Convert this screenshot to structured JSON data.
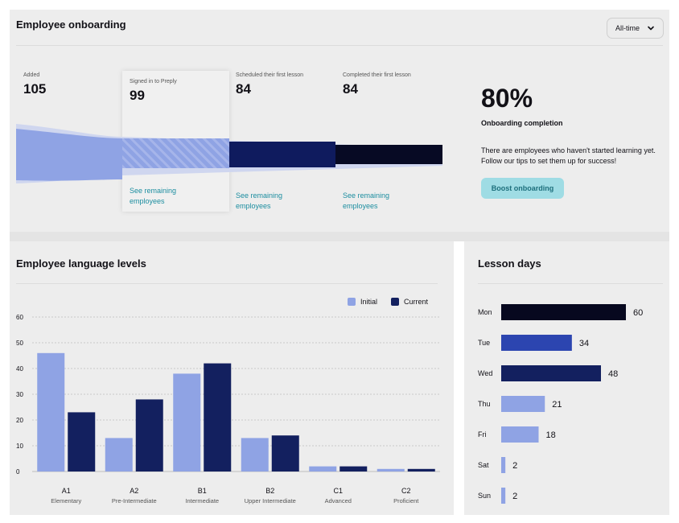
{
  "onboarding": {
    "title": "Employee onboarding",
    "period_select": {
      "value": "All-time",
      "icon": "chevron-down-icon"
    },
    "stages": [
      {
        "label": "Added",
        "value": "105",
        "link": ""
      },
      {
        "label": "Signed in to Preply",
        "value": "99",
        "link_line1": "See remaining",
        "link_line2": "employees"
      },
      {
        "label": "Scheduled their first lesson",
        "value": "84",
        "link_line1": "See remaining",
        "link_line2": "employees"
      },
      {
        "label": "Completed their first lesson",
        "value": "84",
        "link_line1": "See remaining",
        "link_line2": "employees"
      }
    ],
    "completion_pct": "80%",
    "completion_label": "Onboarding completion",
    "tip": "There are employees who haven't started learning yet. Follow our tips to set them up for success!",
    "boost_button": "Boost onboarding",
    "colors": {
      "added": "#8fa3e4",
      "signed": "#8fa3e4",
      "scheduled": "#0f1b5e",
      "completed": "#070a24"
    }
  },
  "language_levels": {
    "title": "Employee language levels",
    "legend": [
      "Initial",
      "Current"
    ],
    "colors": {
      "initial": "#8fa3e4",
      "current": "#13205f"
    }
  },
  "lesson_days": {
    "title": "Lesson days",
    "colors": {
      "Mon": "#07081f",
      "Tue": "#2c45b0",
      "Wed": "#13205f",
      "Thu": "#8fa3e4",
      "Fri": "#8fa3e4",
      "Sat": "#8fa3e4",
      "Sun": "#8fa3e4"
    }
  },
  "chart_data": [
    {
      "type": "bar",
      "title": "Employee language levels",
      "categories": [
        "A1",
        "A2",
        "B1",
        "B2",
        "C1",
        "C2"
      ],
      "category_sublabels": [
        "Elementary",
        "Pre-Intermediate",
        "Intermediate",
        "Upper Intermediate",
        "Advanced",
        "Proficient"
      ],
      "series": [
        {
          "name": "Initial",
          "values": [
            46,
            13,
            38,
            13,
            2,
            1
          ]
        },
        {
          "name": "Current",
          "values": [
            23,
            28,
            42,
            14,
            2,
            1
          ]
        }
      ],
      "yticks": [
        0,
        10,
        20,
        30,
        40,
        50,
        60
      ],
      "ylim": [
        0,
        60
      ],
      "grid": true,
      "legend": "top-right"
    },
    {
      "type": "bar",
      "orientation": "horizontal",
      "title": "Lesson days",
      "categories": [
        "Mon",
        "Tue",
        "Wed",
        "Thu",
        "Fri",
        "Sat",
        "Sun"
      ],
      "values": [
        60,
        34,
        48,
        21,
        18,
        2,
        2
      ],
      "data_labels": [
        "60",
        "34",
        "48",
        "21",
        "18",
        "2",
        "2"
      ]
    }
  ]
}
